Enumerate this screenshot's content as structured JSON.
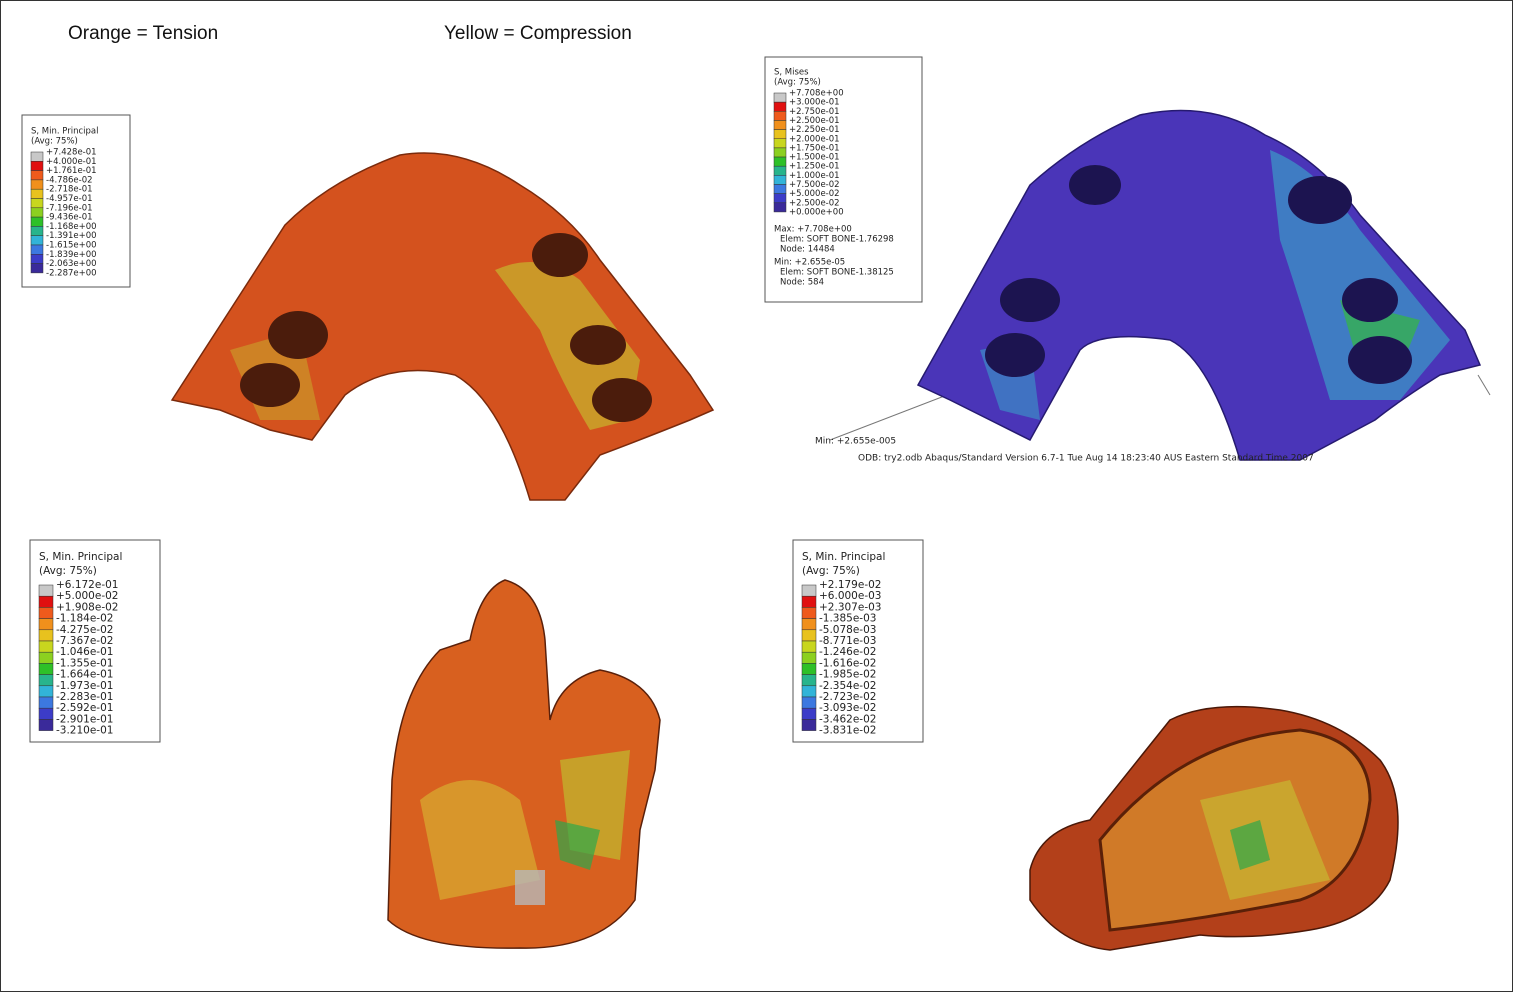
{
  "header": {
    "left": "Orange = Tension",
    "right": "Yellow = Compression"
  },
  "panels": [
    {
      "legend": {
        "title": "S, Min. Principal",
        "subtitle": "(Avg: 75%)",
        "labels": [
          "+7.428e-01",
          "+4.000e-01",
          "+1.761e-01",
          "-4.786e-02",
          "-2.718e-01",
          "-4.957e-01",
          "-7.196e-01",
          "-9.436e-01",
          "-1.168e+00",
          "-1.391e+00",
          "-1.615e+00",
          "-1.839e+00",
          "-2.063e+00",
          "-2.287e+00"
        ]
      }
    },
    {
      "legend": {
        "title": "S, Mises",
        "subtitle": "(Avg: 75%)",
        "labels": [
          "+7.708e+00",
          "+3.000e-01",
          "+2.750e-01",
          "+2.500e-01",
          "+2.250e-01",
          "+2.000e-01",
          "+1.750e-01",
          "+1.500e-01",
          "+1.250e-01",
          "+1.000e-01",
          "+7.500e-02",
          "+5.000e-02",
          "+2.500e-02",
          "+0.000e+00"
        ]
      },
      "info": [
        "Max: +7.708e+00",
        "Elem: SOFT BONE-1.76298",
        "Node: 14484",
        "Min: +2.655e-05",
        "Elem: SOFT BONE-1.38125",
        "Node: 584"
      ],
      "min_label": "Min: +2.655e-005",
      "footer": "ODB: try2.odb    Abaqus/Standard Version 6.7-1    Tue Aug 14 18:23:40 AUS Eastern Standard Time 2007"
    },
    {
      "legend": {
        "title": "S, Min. Principal",
        "subtitle": "(Avg: 75%)",
        "labels": [
          "+6.172e-01",
          "+5.000e-02",
          "+1.908e-02",
          "-1.184e-02",
          "-4.275e-02",
          "-7.367e-02",
          "-1.046e-01",
          "-1.355e-01",
          "-1.664e-01",
          "-1.973e-01",
          "-2.283e-01",
          "-2.592e-01",
          "-2.901e-01",
          "-3.210e-01"
        ]
      }
    },
    {
      "legend": {
        "title": "S, Min. Principal",
        "subtitle": "(Avg: 75%)",
        "labels": [
          "+2.179e-02",
          "+6.000e-03",
          "+2.307e-03",
          "-1.385e-03",
          "-5.078e-03",
          "-8.771e-03",
          "-1.246e-02",
          "-1.616e-02",
          "-1.985e-02",
          "-2.354e-02",
          "-2.723e-02",
          "-3.093e-02",
          "-3.462e-02",
          "-3.831e-02"
        ]
      }
    }
  ]
}
